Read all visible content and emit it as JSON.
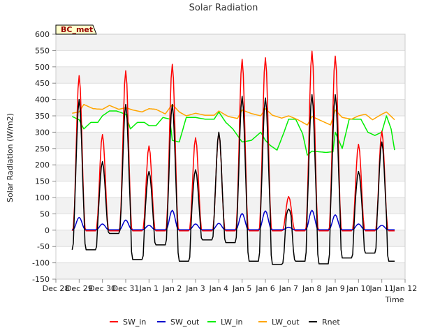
{
  "chart_data": {
    "type": "line",
    "title": "Solar Radiation",
    "xlabel": "Time",
    "ylabel": "Solar Radiation (W/m2)",
    "station_label": "BC_met",
    "ylim": [
      -150,
      600
    ],
    "yticks": [
      -150,
      -100,
      -50,
      0,
      50,
      100,
      150,
      200,
      250,
      300,
      350,
      400,
      450,
      500,
      550,
      600
    ],
    "xlim": [
      0,
      15
    ],
    "x_units": "days since Dec 28",
    "xtick_labels": [
      "Dec 28",
      "Dec 29",
      "Dec 30",
      "Dec 31",
      "Jan 1",
      "Jan 2",
      "Jan 3",
      "Jan 4",
      "Jan 5",
      "Jan 6",
      "Jan 7",
      "Jan 8",
      "Jan 9",
      "Jan 10",
      "Jan 11",
      "Jan 12"
    ],
    "x_start": 0.7,
    "x_end": 14.55,
    "step": 0.05,
    "colors": {
      "SW_in": "#ff0000",
      "SW_out": "#0000cc",
      "LW_in": "#00ee00",
      "LW_out": "#ffa500",
      "Rnet": "#000000"
    },
    "series": [
      {
        "name": "SW_in",
        "color": "#ff0000",
        "description": "daily midday peaks, near zero at night",
        "daily_peaks": [
          {
            "center": 1.0,
            "peak": 475
          },
          {
            "center": 2.0,
            "peak": 295
          },
          {
            "center": 3.0,
            "peak": 490
          },
          {
            "center": 4.0,
            "peak": 260
          },
          {
            "center": 5.0,
            "peak": 510
          },
          {
            "center": 6.0,
            "peak": 285
          },
          {
            "center": 7.0,
            "peak": 300
          },
          {
            "center": 8.0,
            "peak": 525
          },
          {
            "center": 9.0,
            "peak": 530
          },
          {
            "center": 10.0,
            "peak": 105
          },
          {
            "center": 11.0,
            "peak": 550
          },
          {
            "center": 12.0,
            "peak": 535
          },
          {
            "center": 13.0,
            "peak": 265
          },
          {
            "center": 14.0,
            "peak": 305
          }
        ]
      },
      {
        "name": "SW_out",
        "color": "#0000cc",
        "description": "small daytime reflected shortwave",
        "daily_peaks": [
          {
            "center": 1.0,
            "peak": 38
          },
          {
            "center": 2.0,
            "peak": 18
          },
          {
            "center": 3.0,
            "peak": 30
          },
          {
            "center": 4.0,
            "peak": 14
          },
          {
            "center": 5.0,
            "peak": 60
          },
          {
            "center": 6.0,
            "peak": 18
          },
          {
            "center": 7.0,
            "peak": 20
          },
          {
            "center": 8.0,
            "peak": 50
          },
          {
            "center": 9.0,
            "peak": 58
          },
          {
            "center": 10.0,
            "peak": 8
          },
          {
            "center": 11.0,
            "peak": 60
          },
          {
            "center": 12.0,
            "peak": 46
          },
          {
            "center": 13.0,
            "peak": 18
          },
          {
            "center": 14.0,
            "peak": 14
          }
        ]
      },
      {
        "name": "LW_in",
        "color": "#00ee00",
        "description": "incoming longwave",
        "points": [
          [
            0.7,
            348
          ],
          [
            1.0,
            338
          ],
          [
            1.2,
            310
          ],
          [
            1.5,
            330
          ],
          [
            1.8,
            330
          ],
          [
            2.0,
            350
          ],
          [
            2.3,
            365
          ],
          [
            2.6,
            365
          ],
          [
            3.0,
            355
          ],
          [
            3.2,
            310
          ],
          [
            3.5,
            330
          ],
          [
            3.8,
            330
          ],
          [
            4.0,
            320
          ],
          [
            4.3,
            320
          ],
          [
            4.6,
            345
          ],
          [
            4.9,
            340
          ],
          [
            5.0,
            275
          ],
          [
            5.3,
            270
          ],
          [
            5.6,
            345
          ],
          [
            6.0,
            345
          ],
          [
            6.4,
            340
          ],
          [
            6.8,
            340
          ],
          [
            7.0,
            362
          ],
          [
            7.3,
            330
          ],
          [
            7.6,
            310
          ],
          [
            8.0,
            270
          ],
          [
            8.4,
            275
          ],
          [
            8.8,
            300
          ],
          [
            9.0,
            275
          ],
          [
            9.2,
            260
          ],
          [
            9.5,
            245
          ],
          [
            9.8,
            300
          ],
          [
            10.0,
            340
          ],
          [
            10.3,
            340
          ],
          [
            10.6,
            295
          ],
          [
            10.8,
            230
          ],
          [
            11.0,
            242
          ],
          [
            11.3,
            240
          ],
          [
            11.6,
            238
          ],
          [
            11.9,
            240
          ],
          [
            12.0,
            300
          ],
          [
            12.3,
            250
          ],
          [
            12.6,
            340
          ],
          [
            12.9,
            340
          ],
          [
            13.1,
            340
          ],
          [
            13.4,
            300
          ],
          [
            13.7,
            290
          ],
          [
            14.0,
            300
          ],
          [
            14.2,
            350
          ],
          [
            14.4,
            310
          ],
          [
            14.55,
            245
          ]
        ]
      },
      {
        "name": "LW_out",
        "color": "#ffa500",
        "description": "outgoing longwave",
        "points": [
          [
            0.7,
            358
          ],
          [
            1.0,
            362
          ],
          [
            1.2,
            385
          ],
          [
            1.6,
            372
          ],
          [
            2.0,
            370
          ],
          [
            2.3,
            382
          ],
          [
            2.7,
            370
          ],
          [
            3.0,
            375
          ],
          [
            3.3,
            368
          ],
          [
            3.7,
            362
          ],
          [
            4.0,
            372
          ],
          [
            4.3,
            370
          ],
          [
            4.7,
            356
          ],
          [
            5.0,
            385
          ],
          [
            5.3,
            362
          ],
          [
            5.6,
            350
          ],
          [
            6.0,
            358
          ],
          [
            6.4,
            352
          ],
          [
            6.8,
            352
          ],
          [
            7.0,
            365
          ],
          [
            7.4,
            348
          ],
          [
            7.8,
            342
          ],
          [
            8.0,
            368
          ],
          [
            8.4,
            357
          ],
          [
            8.8,
            350
          ],
          [
            9.0,
            372
          ],
          [
            9.3,
            352
          ],
          [
            9.7,
            343
          ],
          [
            10.0,
            350
          ],
          [
            10.4,
            338
          ],
          [
            10.8,
            322
          ],
          [
            11.0,
            348
          ],
          [
            11.4,
            335
          ],
          [
            11.8,
            322
          ],
          [
            12.0,
            368
          ],
          [
            12.3,
            345
          ],
          [
            12.7,
            340
          ],
          [
            13.0,
            350
          ],
          [
            13.3,
            355
          ],
          [
            13.6,
            338
          ],
          [
            14.0,
            355
          ],
          [
            14.2,
            362
          ],
          [
            14.55,
            338
          ]
        ]
      },
      {
        "name": "Rnet",
        "color": "#000000",
        "description": "net radiation: positive daytime peaks, negative nights",
        "night_levels": [
          {
            "center": 1.5,
            "level": -60
          },
          {
            "center": 2.5,
            "level": -10
          },
          {
            "center": 3.5,
            "level": -90
          },
          {
            "center": 4.5,
            "level": -45
          },
          {
            "center": 5.5,
            "level": -95
          },
          {
            "center": 6.5,
            "level": -30
          },
          {
            "center": 7.5,
            "level": -38
          },
          {
            "center": 8.5,
            "level": -95
          },
          {
            "center": 9.5,
            "level": -105
          },
          {
            "center": 10.5,
            "level": -95
          },
          {
            "center": 11.5,
            "level": -103
          },
          {
            "center": 12.5,
            "level": -85
          },
          {
            "center": 13.5,
            "level": -70
          },
          {
            "center": 14.5,
            "level": -95
          }
        ],
        "daily_peaks": [
          {
            "center": 1.0,
            "peak": 400
          },
          {
            "center": 2.0,
            "peak": 210
          },
          {
            "center": 3.0,
            "peak": 385
          },
          {
            "center": 4.0,
            "peak": 180
          },
          {
            "center": 5.0,
            "peak": 385
          },
          {
            "center": 6.0,
            "peak": 185
          },
          {
            "center": 7.0,
            "peak": 300
          },
          {
            "center": 8.0,
            "peak": 410
          },
          {
            "center": 9.0,
            "peak": 405
          },
          {
            "center": 10.0,
            "peak": 65
          },
          {
            "center": 11.0,
            "peak": 415
          },
          {
            "center": 12.0,
            "peak": 415
          },
          {
            "center": 13.0,
            "peak": 180
          },
          {
            "center": 14.0,
            "peak": 270
          }
        ]
      }
    ],
    "legend_position": "bottom-center",
    "grid": true
  }
}
